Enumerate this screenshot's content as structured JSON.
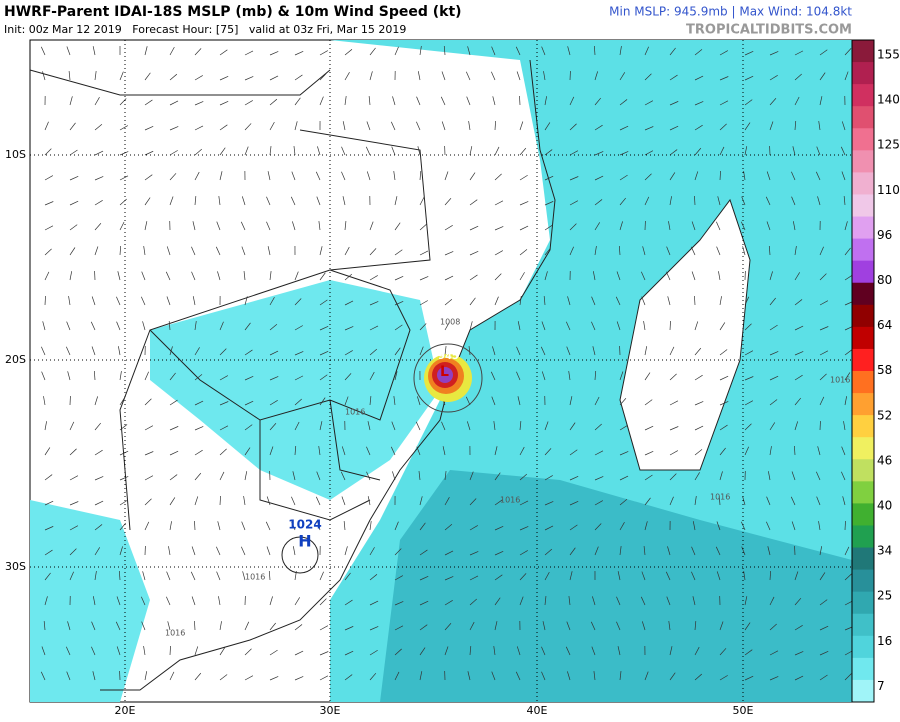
{
  "header": {
    "title": "HWRF-Parent IDAI-18S MSLP (mb) & 10m Wind Speed (kt)",
    "info": "Init: 00z Mar 12 2019   Forecast Hour: [75]   valid at 03z Fri, Mar 15 2019",
    "stats": "Min MSLP: 945.9mb | Max Wind: 104.8kt",
    "site": "TROPICALTIDBITS.COM"
  },
  "map": {
    "lat_labels": [
      "10S",
      "20S",
      "30S"
    ],
    "lon_labels": [
      "20E",
      "30E",
      "40E",
      "50E"
    ],
    "high": {
      "pressure": "1024",
      "letter": "H"
    },
    "low": {
      "pressure": "945",
      "letter": "L"
    },
    "contours": [
      "1008",
      "1016",
      "1016",
      "1016",
      "1016",
      "1016",
      "1016",
      "1016"
    ]
  },
  "colorbar": {
    "labels": [
      155,
      140,
      125,
      110,
      96,
      80,
      64,
      58,
      52,
      46,
      40,
      34,
      25,
      16,
      7
    ]
  }
}
